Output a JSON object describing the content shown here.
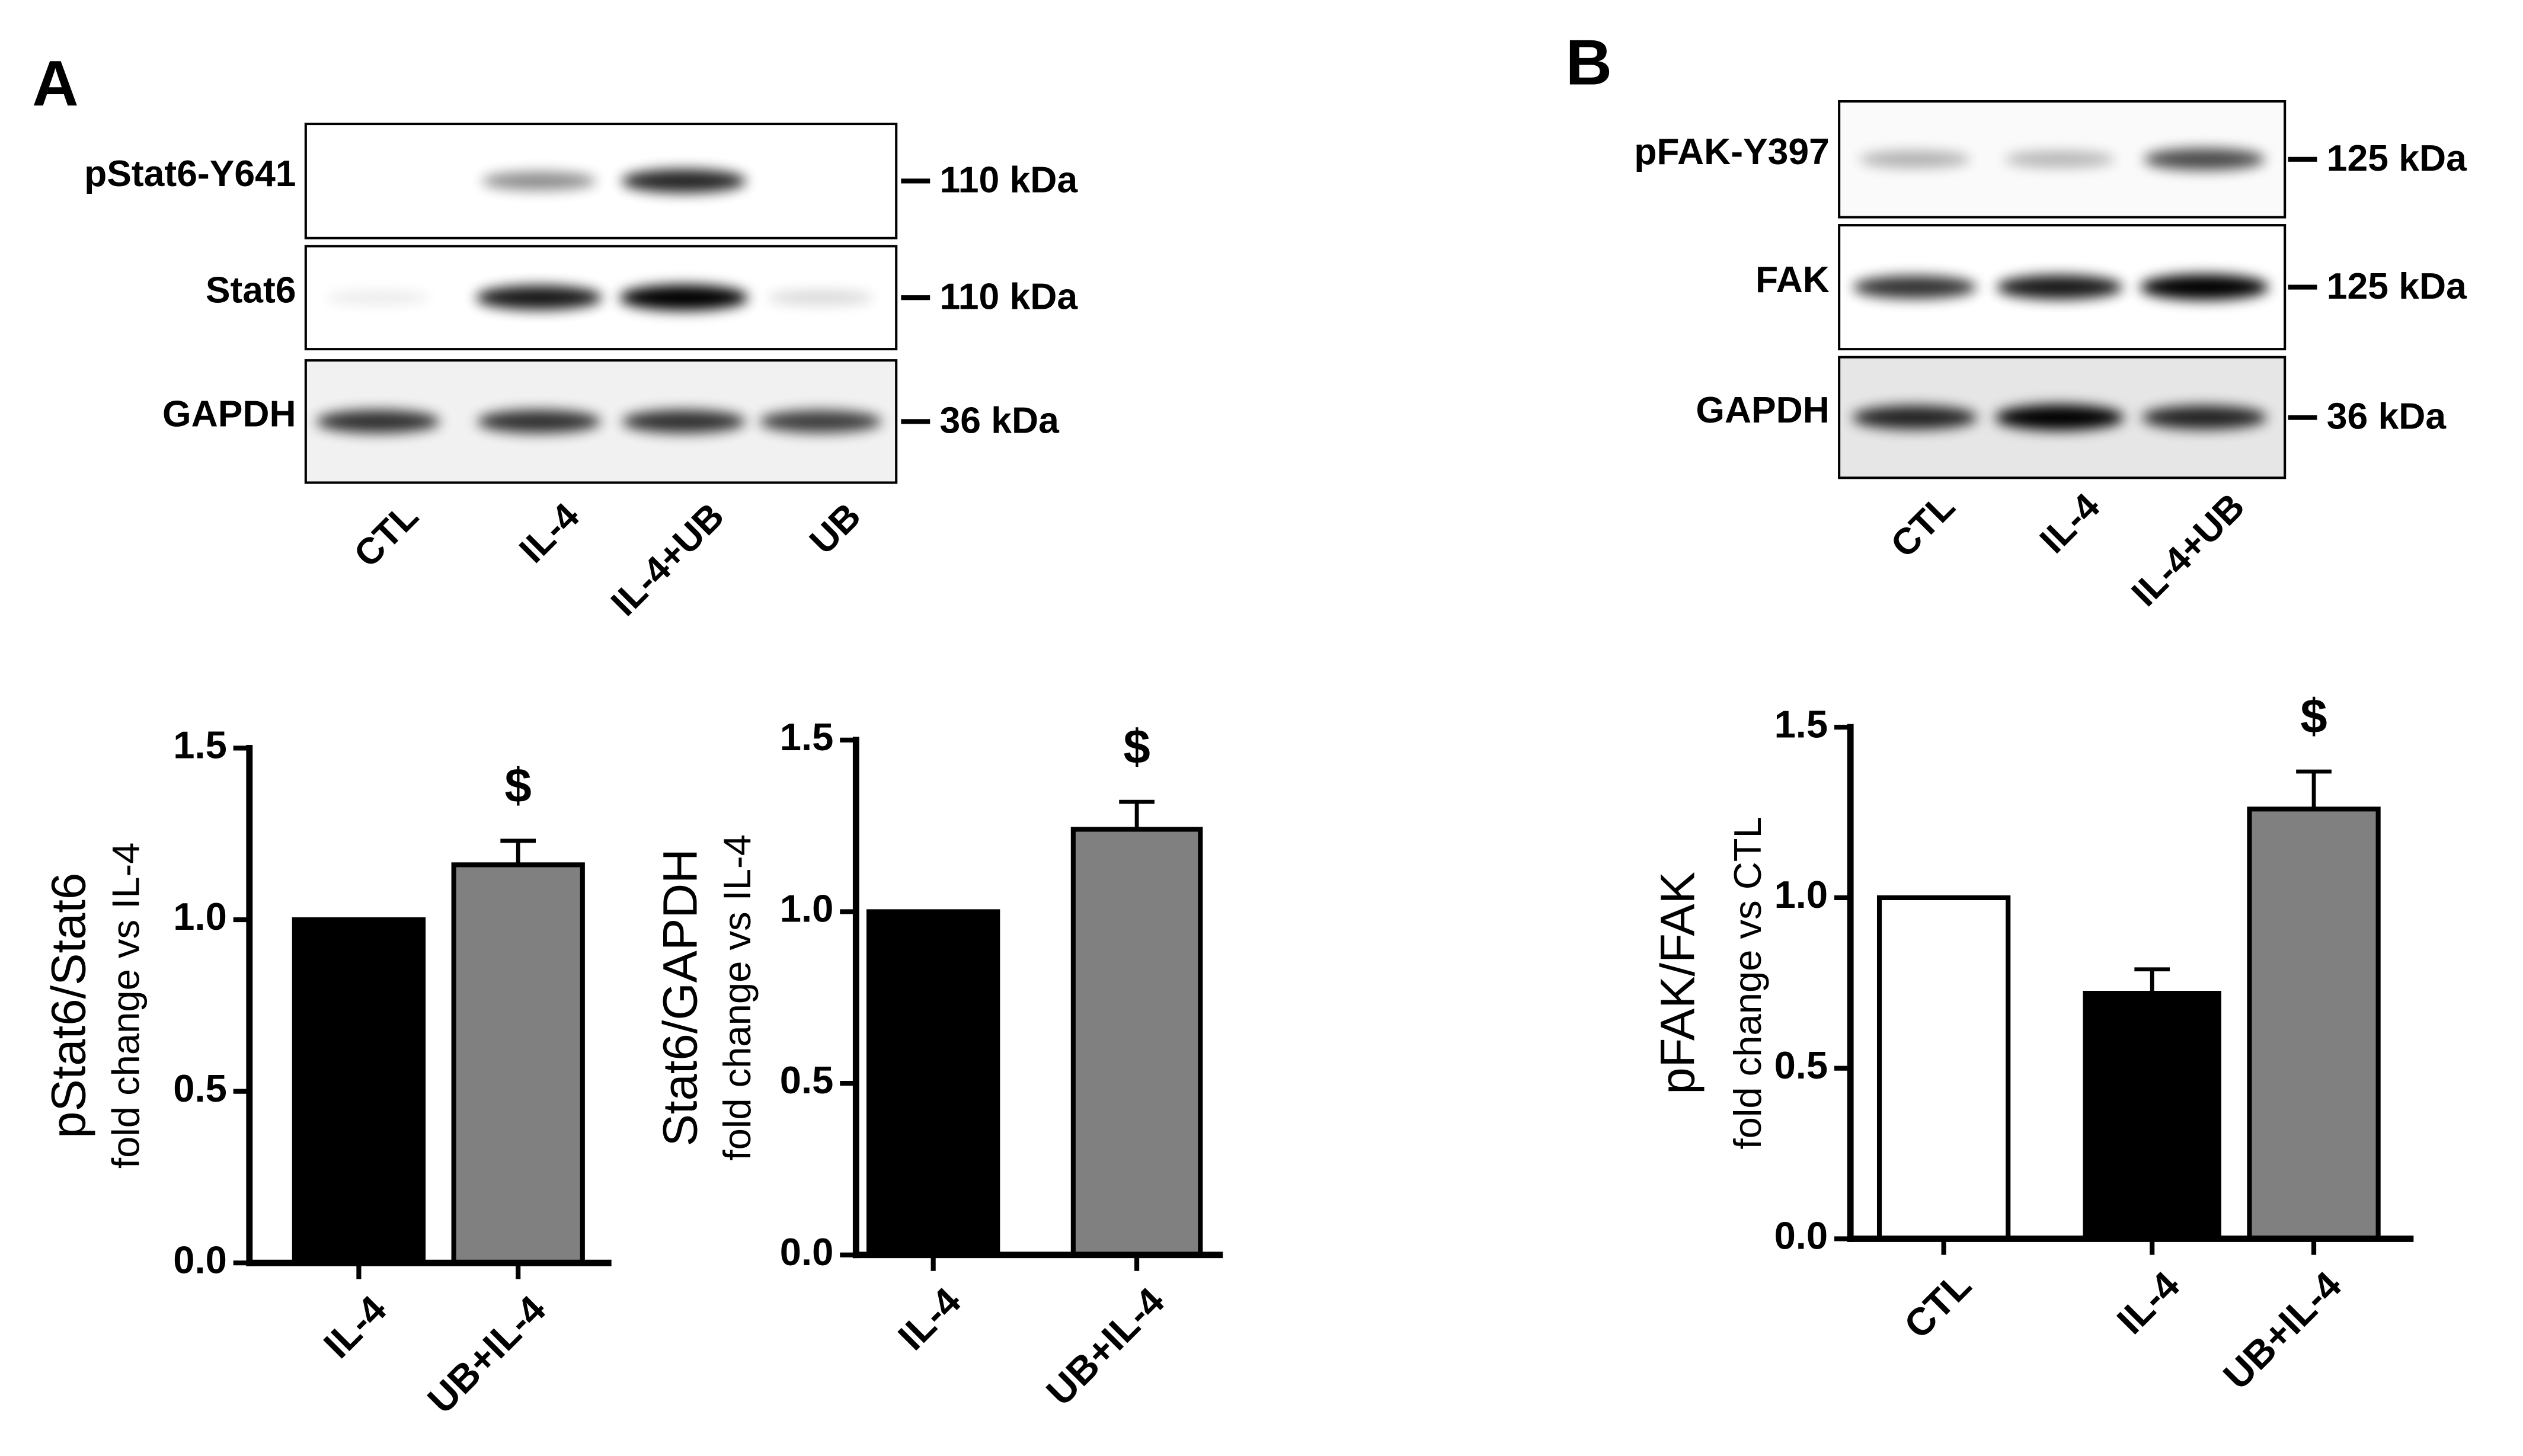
{
  "panels": [
    {
      "letter": "A",
      "blot": {
        "rows": [
          {
            "label": "pStat6-Y641",
            "size": "110 kDa"
          },
          {
            "label": "Stat6",
            "size": "110 kDa"
          },
          {
            "label": "GAPDH",
            "size": "36 kDa"
          }
        ],
        "lanes": [
          "CTL",
          "IL-4",
          "IL-4+UB",
          "UB"
        ]
      }
    },
    {
      "letter": "B",
      "blot": {
        "rows": [
          {
            "label": "pFAK-Y397",
            "size": "125 kDa"
          },
          {
            "label": "FAK",
            "size": "125 kDa"
          },
          {
            "label": "GAPDH",
            "size": "36 kDa"
          }
        ],
        "lanes": [
          "CTL",
          "IL-4",
          "IL-4+UB"
        ]
      }
    }
  ],
  "chart_data": [
    {
      "type": "bar",
      "ylabel": "pStat6/Stat6",
      "ylabel_sub": "fold change vs IL-4",
      "categories": [
        "IL-4",
        "UB+IL-4"
      ],
      "values": [
        1.0,
        1.16
      ],
      "errors": [
        null,
        0.07
      ],
      "colors": [
        "#000000",
        "#808080"
      ],
      "value_annotations": [
        null,
        "$"
      ],
      "ylim": [
        0,
        1.5
      ],
      "yticks": [
        {
          "value": 0,
          "label": "0.0"
        },
        0.5,
        {
          "value": 1,
          "label": "1.0"
        },
        1.5
      ]
    },
    {
      "type": "bar",
      "ylabel": "Stat6/GAPDH",
      "ylabel_sub": "fold change vs IL-4",
      "categories": [
        "IL-4",
        "UB+IL-4"
      ],
      "values": [
        1.0,
        1.24
      ],
      "errors": [
        null,
        0.08
      ],
      "colors": [
        "#000000",
        "#808080"
      ],
      "value_annotations": [
        null,
        "$"
      ],
      "ylim": [
        0,
        1.5
      ],
      "yticks": [
        {
          "value": 0,
          "label": "0.0"
        },
        0.5,
        {
          "value": 1,
          "label": "1.0"
        },
        1.5
      ]
    },
    {
      "type": "bar",
      "ylabel": "pFAK/FAK",
      "ylabel_sub": "fold change vs CTL",
      "categories": [
        "CTL",
        "IL-4",
        "UB+IL-4"
      ],
      "values": [
        1.0,
        0.72,
        1.26
      ],
      "errors": [
        null,
        0.07,
        0.11
      ],
      "colors": [
        "#ffffff",
        "#000000",
        "#808080"
      ],
      "value_annotations": [
        null,
        null,
        "$"
      ],
      "ylim": [
        0,
        1.5
      ],
      "yticks": [
        {
          "value": 0,
          "label": "0.0"
        },
        0.5,
        {
          "value": 1,
          "label": "1.0"
        },
        1.5
      ]
    }
  ]
}
